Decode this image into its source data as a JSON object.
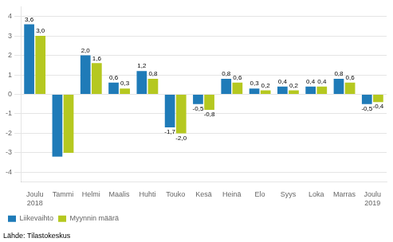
{
  "chart_data": {
    "type": "bar",
    "categories": [
      "Joulu\n2018",
      "Tammi",
      "Helmi",
      "Maalis",
      "Huhti",
      "Touko",
      "Kesä",
      "Heinä",
      "Elo",
      "Syys",
      "Loka",
      "Marras",
      "Joulu\n2019"
    ],
    "series": [
      {
        "name": "Liikevaihto",
        "color": "#1f7bb8",
        "values": [
          3.6,
          -3.2,
          2.0,
          0.6,
          1.2,
          -1.7,
          -0.5,
          0.8,
          0.3,
          0.4,
          0.4,
          0.8,
          -0.5
        ],
        "value_labels": [
          "3,6",
          null,
          "2,0",
          "0,6",
          "1,2",
          "-1,7",
          "-0,5",
          "0,8",
          "0,3",
          "0,4",
          "0,4",
          "0,8",
          "-0,5"
        ]
      },
      {
        "name": "Myynnin määrä",
        "color": "#b5c820",
        "values": [
          3.0,
          -3.0,
          1.6,
          0.3,
          0.8,
          -2.0,
          -0.8,
          0.6,
          0.2,
          0.2,
          0.4,
          0.6,
          -0.4
        ],
        "value_labels": [
          "3,0",
          null,
          "1,6",
          "0,3",
          "0,8",
          "-2,0",
          "-0,8",
          "0,6",
          "0,2",
          "0,2",
          "0,4",
          "0,6",
          "-0,4"
        ]
      }
    ],
    "ylim": [
      -4.5,
      4.5
    ],
    "yticks": [
      -4,
      -3,
      -2,
      -1,
      0,
      1,
      2,
      3,
      4
    ],
    "grid": true,
    "legend": "lower left",
    "data_labels": true,
    "annotations": [
      "Lähde: Tilastokeskus"
    ]
  }
}
